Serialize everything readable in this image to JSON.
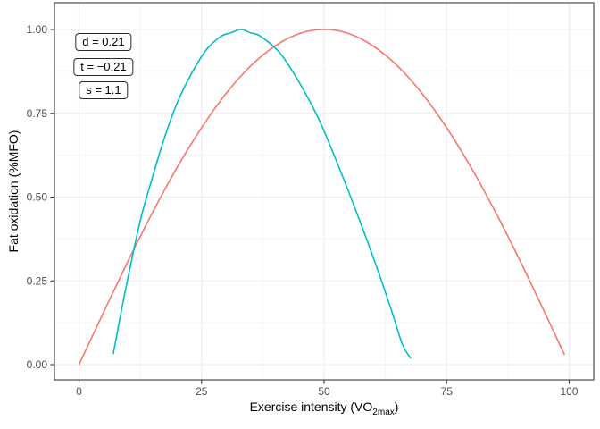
{
  "chart_data": {
    "type": "line",
    "title": "",
    "xlabel": {
      "pre": "Exercise intensity (VO",
      "sub": "2max",
      "post": ")"
    },
    "ylabel": "Fat oxidation (%MFO)",
    "x_axis": {
      "min": -5,
      "max": 105,
      "tick_values": [
        0,
        25,
        50,
        75,
        100
      ],
      "tick_labels": [
        "0",
        "25",
        "50",
        "75",
        "100"
      ],
      "minor_ticks": [
        12.5,
        37.5,
        62.5,
        87.5
      ]
    },
    "y_axis": {
      "min": -0.045,
      "max": 1.08,
      "tick_values": [
        0,
        0.25,
        0.5,
        0.75,
        1
      ],
      "tick_labels": [
        "0.00",
        "0.25",
        "0.50",
        "0.75",
        "1.00"
      ],
      "minor_ticks": [
        0.125,
        0.375,
        0.625,
        0.875
      ]
    },
    "grid": {
      "visible": true,
      "major_color": "#EBEBEB",
      "minor_color": "#F5F5F5"
    },
    "panel": {
      "border_color": "#4D4D4D",
      "background": "#FFFFFF",
      "tick_color": "#333333",
      "tick_label_color": "#4D4D4D"
    },
    "legend": "none",
    "annotations": [
      {
        "text": "d = 0.21",
        "x": 5,
        "y": 0.963
      },
      {
        "text": "t = −0.21",
        "x": 5,
        "y": 0.889
      },
      {
        "text": "s = 1.1",
        "x": 5,
        "y": 0.818
      }
    ],
    "series": [
      {
        "name": "reference-sine-curve",
        "color": "#F8766D",
        "points": [
          [
            0,
            0
          ],
          [
            5,
            0.156
          ],
          [
            10,
            0.309
          ],
          [
            15,
            0.454
          ],
          [
            20,
            0.588
          ],
          [
            25,
            0.707
          ],
          [
            30,
            0.809
          ],
          [
            35,
            0.891
          ],
          [
            40,
            0.951
          ],
          [
            45,
            0.988
          ],
          [
            50,
            1.0
          ],
          [
            55,
            0.988
          ],
          [
            60,
            0.951
          ],
          [
            65,
            0.891
          ],
          [
            70,
            0.809
          ],
          [
            75,
            0.707
          ],
          [
            80,
            0.588
          ],
          [
            85,
            0.454
          ],
          [
            90,
            0.309
          ],
          [
            95,
            0.156
          ],
          [
            99,
            0.031
          ]
        ]
      },
      {
        "name": "shifted-dilated-curve",
        "color": "#00BFC4",
        "points": [
          [
            7,
            0.033
          ],
          [
            8.5,
            0.15
          ],
          [
            10,
            0.26
          ],
          [
            12.5,
            0.43
          ],
          [
            15,
            0.56
          ],
          [
            17.5,
            0.68
          ],
          [
            20,
            0.78
          ],
          [
            23,
            0.87
          ],
          [
            26,
            0.94
          ],
          [
            29,
            0.98
          ],
          [
            31,
            0.99
          ],
          [
            33,
            1.0
          ],
          [
            35,
            0.99
          ],
          [
            37,
            0.98
          ],
          [
            41,
            0.93
          ],
          [
            45,
            0.84
          ],
          [
            49,
            0.73
          ],
          [
            53,
            0.59
          ],
          [
            57,
            0.44
          ],
          [
            61,
            0.28
          ],
          [
            64,
            0.15
          ],
          [
            66,
            0.06
          ],
          [
            67.6,
            0.02
          ]
        ]
      }
    ]
  }
}
